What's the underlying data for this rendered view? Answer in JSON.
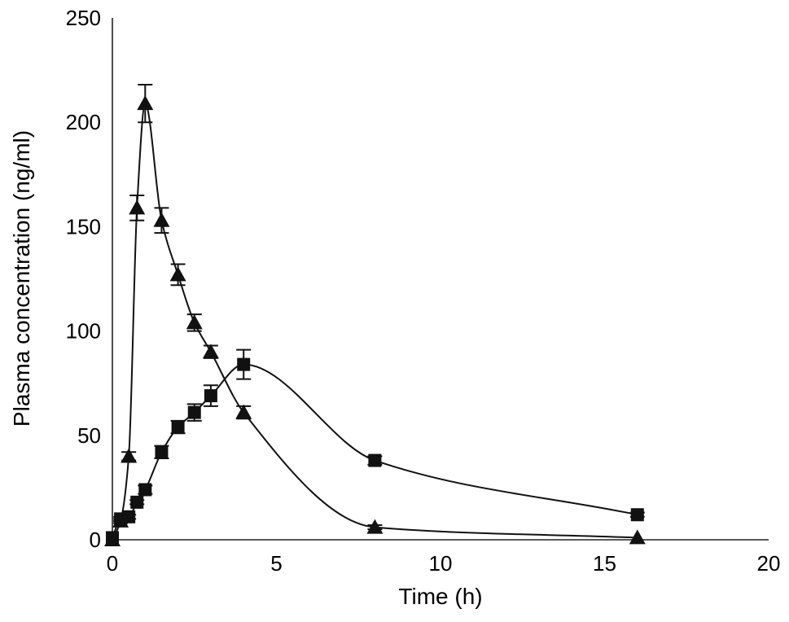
{
  "chart_data": {
    "type": "line",
    "title": "",
    "xlabel": "Time (h)",
    "ylabel": "Plasma concentration (ng/ml)",
    "xlim": [
      0,
      20
    ],
    "ylim": [
      0,
      250
    ],
    "x_ticks": [
      0,
      5,
      10,
      15,
      20
    ],
    "y_ticks": [
      0,
      50,
      100,
      150,
      200,
      250
    ],
    "grid": false,
    "legend": "none",
    "series": [
      {
        "marker": "triangle",
        "color": "#111111",
        "x": [
          0,
          0.25,
          0.5,
          0.75,
          1,
          1.5,
          2,
          2.5,
          3,
          4,
          8,
          16
        ],
        "y": [
          0,
          9,
          40,
          159,
          209,
          153,
          127,
          104,
          90,
          61,
          6,
          1
        ],
        "error": [
          0,
          1,
          2,
          6,
          9,
          6,
          5,
          4,
          3,
          3,
          1,
          0
        ]
      },
      {
        "marker": "square",
        "color": "#111111",
        "x": [
          0,
          0.25,
          0.5,
          0.75,
          1,
          1.5,
          2,
          2.5,
          3,
          4,
          8,
          16
        ],
        "y": [
          1,
          10,
          11,
          18,
          24,
          42,
          54,
          61,
          69,
          84,
          38,
          12
        ],
        "error": [
          0,
          1,
          1,
          1,
          2,
          3,
          3,
          4,
          5,
          7,
          2,
          1
        ]
      }
    ]
  }
}
